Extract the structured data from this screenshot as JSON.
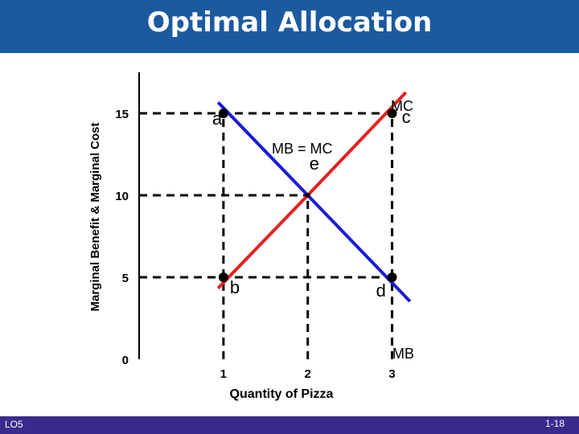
{
  "header": {
    "title": "Optimal Allocation"
  },
  "footer": {
    "left_label": "LO5",
    "slide_number": "1-18"
  },
  "colors": {
    "header_bg": "#1c5aa0",
    "footer_bg": "#3a2a8c",
    "mb_line": "#1a1adc",
    "mc_line": "#e82020"
  },
  "chart_data": {
    "type": "line",
    "title": "",
    "xlabel": "Quantity of Pizza",
    "ylabel": "Marginal Benefit & Marginal Cost",
    "xlim": [
      0,
      3.5
    ],
    "ylim": [
      0,
      17.5
    ],
    "x_ticks": [
      {
        "value": 1,
        "label": "1"
      },
      {
        "value": 2,
        "label": "2"
      },
      {
        "value": 3,
        "label": "3"
      }
    ],
    "y_ticks": [
      {
        "value": 0,
        "label": "0"
      },
      {
        "value": 5,
        "label": "5"
      },
      {
        "value": 10,
        "label": "10"
      },
      {
        "value": 15,
        "label": "15"
      }
    ],
    "series": [
      {
        "name": "MB",
        "color": "#1a1adc",
        "points": [
          [
            0.95,
            15.6
          ],
          [
            2,
            10
          ],
          [
            3.2,
            3.6
          ]
        ]
      },
      {
        "name": "MC",
        "color": "#e82020",
        "points": [
          [
            0.95,
            4.4
          ],
          [
            2,
            10
          ],
          [
            3.15,
            16.2
          ]
        ]
      }
    ],
    "points": [
      {
        "label": "a",
        "x": 1,
        "y": 15
      },
      {
        "label": "b",
        "x": 1,
        "y": 5
      },
      {
        "label": "c",
        "x": 3,
        "y": 15
      },
      {
        "label": "d",
        "x": 3,
        "y": 5
      },
      {
        "label": "e",
        "x": 2,
        "y": 10
      }
    ],
    "annotations": [
      "MB = MC"
    ],
    "dashed_levels": {
      "y": [
        15,
        10,
        5
      ],
      "x": [
        1,
        2,
        3
      ]
    }
  }
}
